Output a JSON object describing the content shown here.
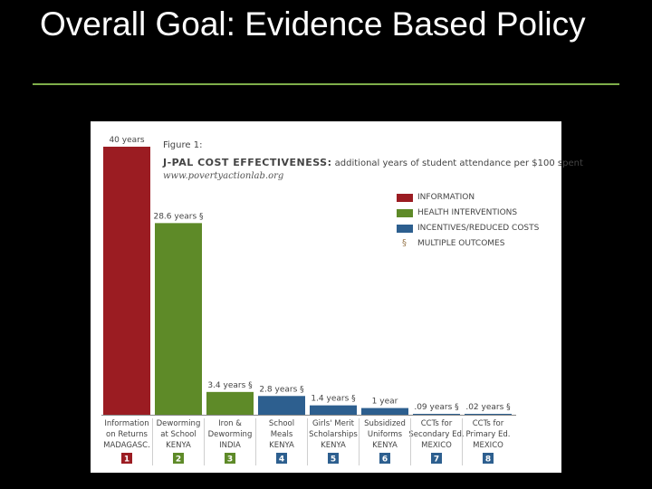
{
  "slide": {
    "title": "Overall Goal: Evidence Based Policy"
  },
  "figure": {
    "label": "Figure 1:",
    "heading_strong": "J-PAL COST EFFECTIVENESS:",
    "heading_rest": " additional years of student attendance per $100 spent",
    "url": "www.povertyactionlab.org"
  },
  "legend": [
    {
      "label": "INFORMATION",
      "color": "#9b1c22",
      "symbol": ""
    },
    {
      "label": "HEALTH INTERVENTIONS",
      "color": "#5e8a28",
      "symbol": ""
    },
    {
      "label": "INCENTIVES/REDUCED COSTS",
      "color": "#2d5f8f",
      "symbol": ""
    },
    {
      "label": "MULTIPLE OUTCOMES",
      "color": "",
      "symbol": "§"
    }
  ],
  "chart_data": {
    "type": "bar",
    "title": "J-PAL COST EFFECTIVENESS: additional years of student attendance per $100 spent",
    "y_unit": "additional years of student attendance per $100 spent",
    "ylim": [
      0,
      40
    ],
    "categories": [
      {
        "lines": [
          "Information",
          "on Returns",
          "MADAGASC."
        ],
        "number": "1"
      },
      {
        "lines": [
          "Deworming",
          "at School",
          "KENYA"
        ],
        "number": "2"
      },
      {
        "lines": [
          "Iron &",
          "Deworming",
          "INDIA"
        ],
        "number": "3"
      },
      {
        "lines": [
          "School",
          "Meals",
          "KENYA"
        ],
        "number": "4"
      },
      {
        "lines": [
          "Girls' Merit",
          "Scholarships",
          "KENYA"
        ],
        "number": "5"
      },
      {
        "lines": [
          "Subsidized",
          "Uniforms",
          "KENYA"
        ],
        "number": "6"
      },
      {
        "lines": [
          "CCTs for",
          "Secondary Ed.",
          "MEXICO"
        ],
        "number": "7"
      },
      {
        "lines": [
          "CCTs for",
          "Primary Ed.",
          "MEXICO"
        ],
        "number": "8"
      }
    ],
    "values": [
      40,
      28.6,
      3.4,
      2.8,
      1.4,
      1,
      0.09,
      0.02
    ],
    "data_labels": [
      "40 years",
      "28.6 years §",
      "3.4 years §",
      "2.8 years §",
      "1.4 years §",
      "1 year",
      ".09 years §",
      ".02 years §"
    ],
    "groups": [
      "INFORMATION",
      "HEALTH INTERVENTIONS",
      "HEALTH INTERVENTIONS",
      "INCENTIVES/REDUCED COSTS",
      "INCENTIVES/REDUCED COSTS",
      "INCENTIVES/REDUCED COSTS",
      "INCENTIVES/REDUCED COSTS",
      "INCENTIVES/REDUCED COSTS"
    ],
    "group_colors": {
      "INFORMATION": "#9b1c22",
      "HEALTH INTERVENTIONS": "#5e8a28",
      "INCENTIVES/REDUCED COSTS": "#2d5f8f"
    },
    "legend_position": "top-right",
    "grid": false
  }
}
